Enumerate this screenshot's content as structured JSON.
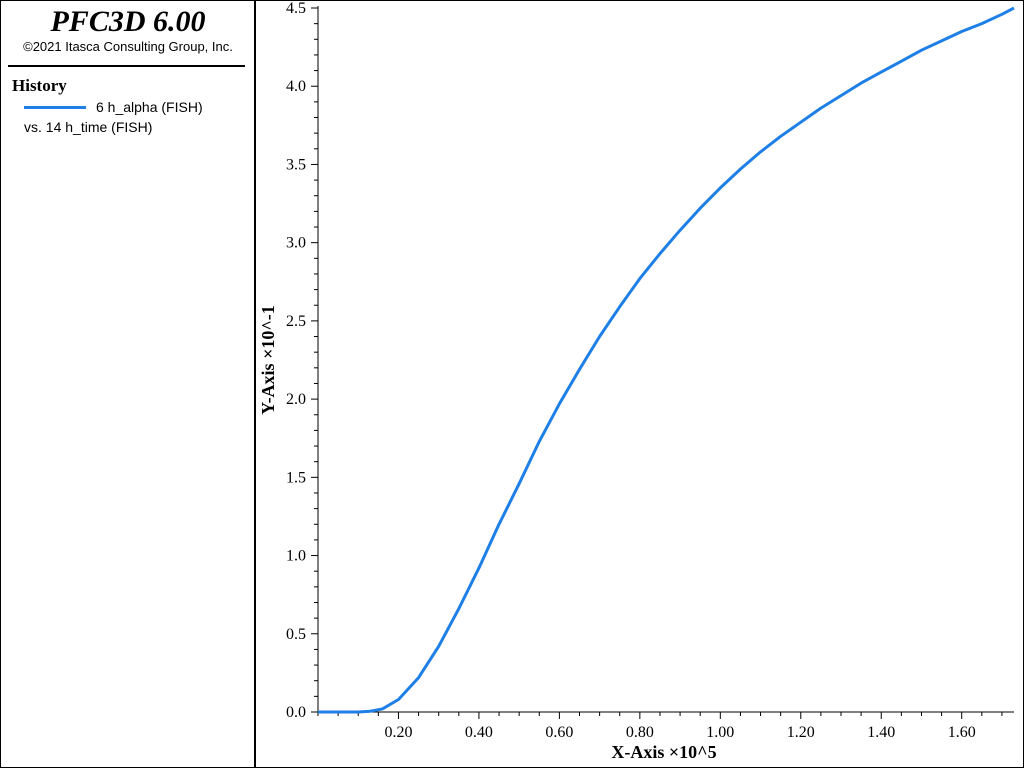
{
  "header": {
    "app_title": "PFC3D 6.00",
    "copyright": "©2021 Itasca Consulting Group, Inc."
  },
  "legend": {
    "heading": "History",
    "series_label": "6 h_alpha (FISH)",
    "vs_label": "vs. 14 h_time (FISH)"
  },
  "colors": {
    "series": "#1e7fe6",
    "axis": "#000000"
  },
  "chart_data": {
    "type": "line",
    "title": "",
    "xlabel": "X-Axis ×10^5",
    "ylabel": "Y-Axis ×10^-1",
    "xlim": [
      0.0,
      1.73
    ],
    "ylim": [
      0.0,
      4.5
    ],
    "x_ticks": [
      "0.20",
      "0.40",
      "0.60",
      "0.80",
      "1.00",
      "1.20",
      "1.40",
      "1.60"
    ],
    "y_ticks": [
      "0.0",
      "0.5",
      "1.0",
      "1.5",
      "2.0",
      "2.5",
      "3.0",
      "3.5",
      "4.0",
      "4.5"
    ],
    "grid": false,
    "legend_position": "left-panel",
    "series": [
      {
        "name": "6 h_alpha (FISH)",
        "x": [
          0.0,
          0.05,
          0.1,
          0.13,
          0.16,
          0.2,
          0.25,
          0.3,
          0.35,
          0.4,
          0.45,
          0.5,
          0.55,
          0.6,
          0.65,
          0.7,
          0.75,
          0.8,
          0.85,
          0.9,
          0.95,
          1.0,
          1.05,
          1.1,
          1.15,
          1.2,
          1.25,
          1.3,
          1.35,
          1.4,
          1.45,
          1.5,
          1.55,
          1.6,
          1.65,
          1.7,
          1.73
        ],
        "y": [
          0.0,
          0.0,
          0.0,
          0.005,
          0.02,
          0.08,
          0.22,
          0.42,
          0.66,
          0.92,
          1.2,
          1.46,
          1.73,
          1.97,
          2.19,
          2.4,
          2.59,
          2.77,
          2.93,
          3.08,
          3.22,
          3.35,
          3.47,
          3.58,
          3.68,
          3.77,
          3.86,
          3.94,
          4.02,
          4.09,
          4.16,
          4.23,
          4.29,
          4.35,
          4.4,
          4.46,
          4.5
        ]
      }
    ]
  }
}
